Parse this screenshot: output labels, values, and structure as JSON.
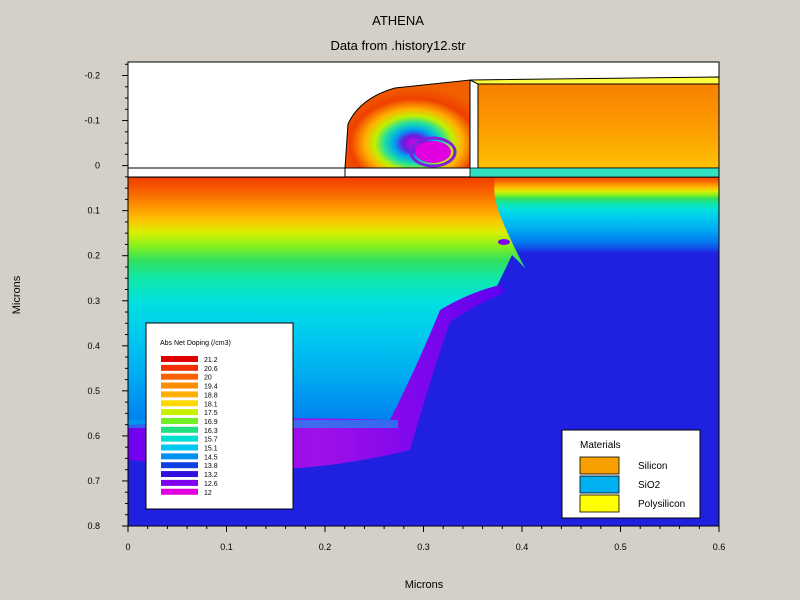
{
  "chart_data": {
    "type": "heatmap",
    "title": "ATHENA",
    "subtitle": "Data from .history12.str",
    "xlabel": "Microns",
    "ylabel": "Microns",
    "xlim": [
      0,
      0.6
    ],
    "ylim": [
      -0.23,
      0.8
    ],
    "y_inverted": true,
    "x_ticks": [
      "0",
      "0.1",
      "0.2",
      "0.3",
      "0.4",
      "0.5",
      "0.6"
    ],
    "x_tick_values": [
      0,
      0.1,
      0.2,
      0.3,
      0.4,
      0.5,
      0.6
    ],
    "y_ticks": [
      "-0.2",
      "-0.1",
      "0",
      "0.1",
      "0.2",
      "0.3",
      "0.4",
      "0.5",
      "0.6",
      "0.7",
      "0.8"
    ],
    "y_tick_values": [
      -0.2,
      -0.1,
      0,
      0.1,
      0.2,
      0.3,
      0.4,
      0.5,
      0.6,
      0.7,
      0.8
    ],
    "colorbar": {
      "title": "Abs Net Doping (/cm3)",
      "labels": [
        "21.2",
        "20.6",
        "20",
        "19.4",
        "18.8",
        "18.1",
        "17.5",
        "16.9",
        "16.3",
        "15.7",
        "15.1",
        "14.5",
        "13.8",
        "13.2",
        "12.6",
        "12"
      ],
      "colors": [
        "#e00000",
        "#f03000",
        "#f86000",
        "#fc8c00",
        "#ffb000",
        "#ffd800",
        "#c8f000",
        "#70f020",
        "#20e080",
        "#00e0d0",
        "#00c8f0",
        "#0090f0",
        "#1040e0",
        "#3010e0",
        "#8000f0",
        "#e000e0"
      ]
    },
    "materials": {
      "title": "Materials",
      "items": [
        {
          "name": "Silicon",
          "color": "#f8a000"
        },
        {
          "name": "SiO2",
          "color": "#00b0f0"
        },
        {
          "name": "Polysilicon",
          "color": "#ffff00"
        }
      ]
    }
  }
}
